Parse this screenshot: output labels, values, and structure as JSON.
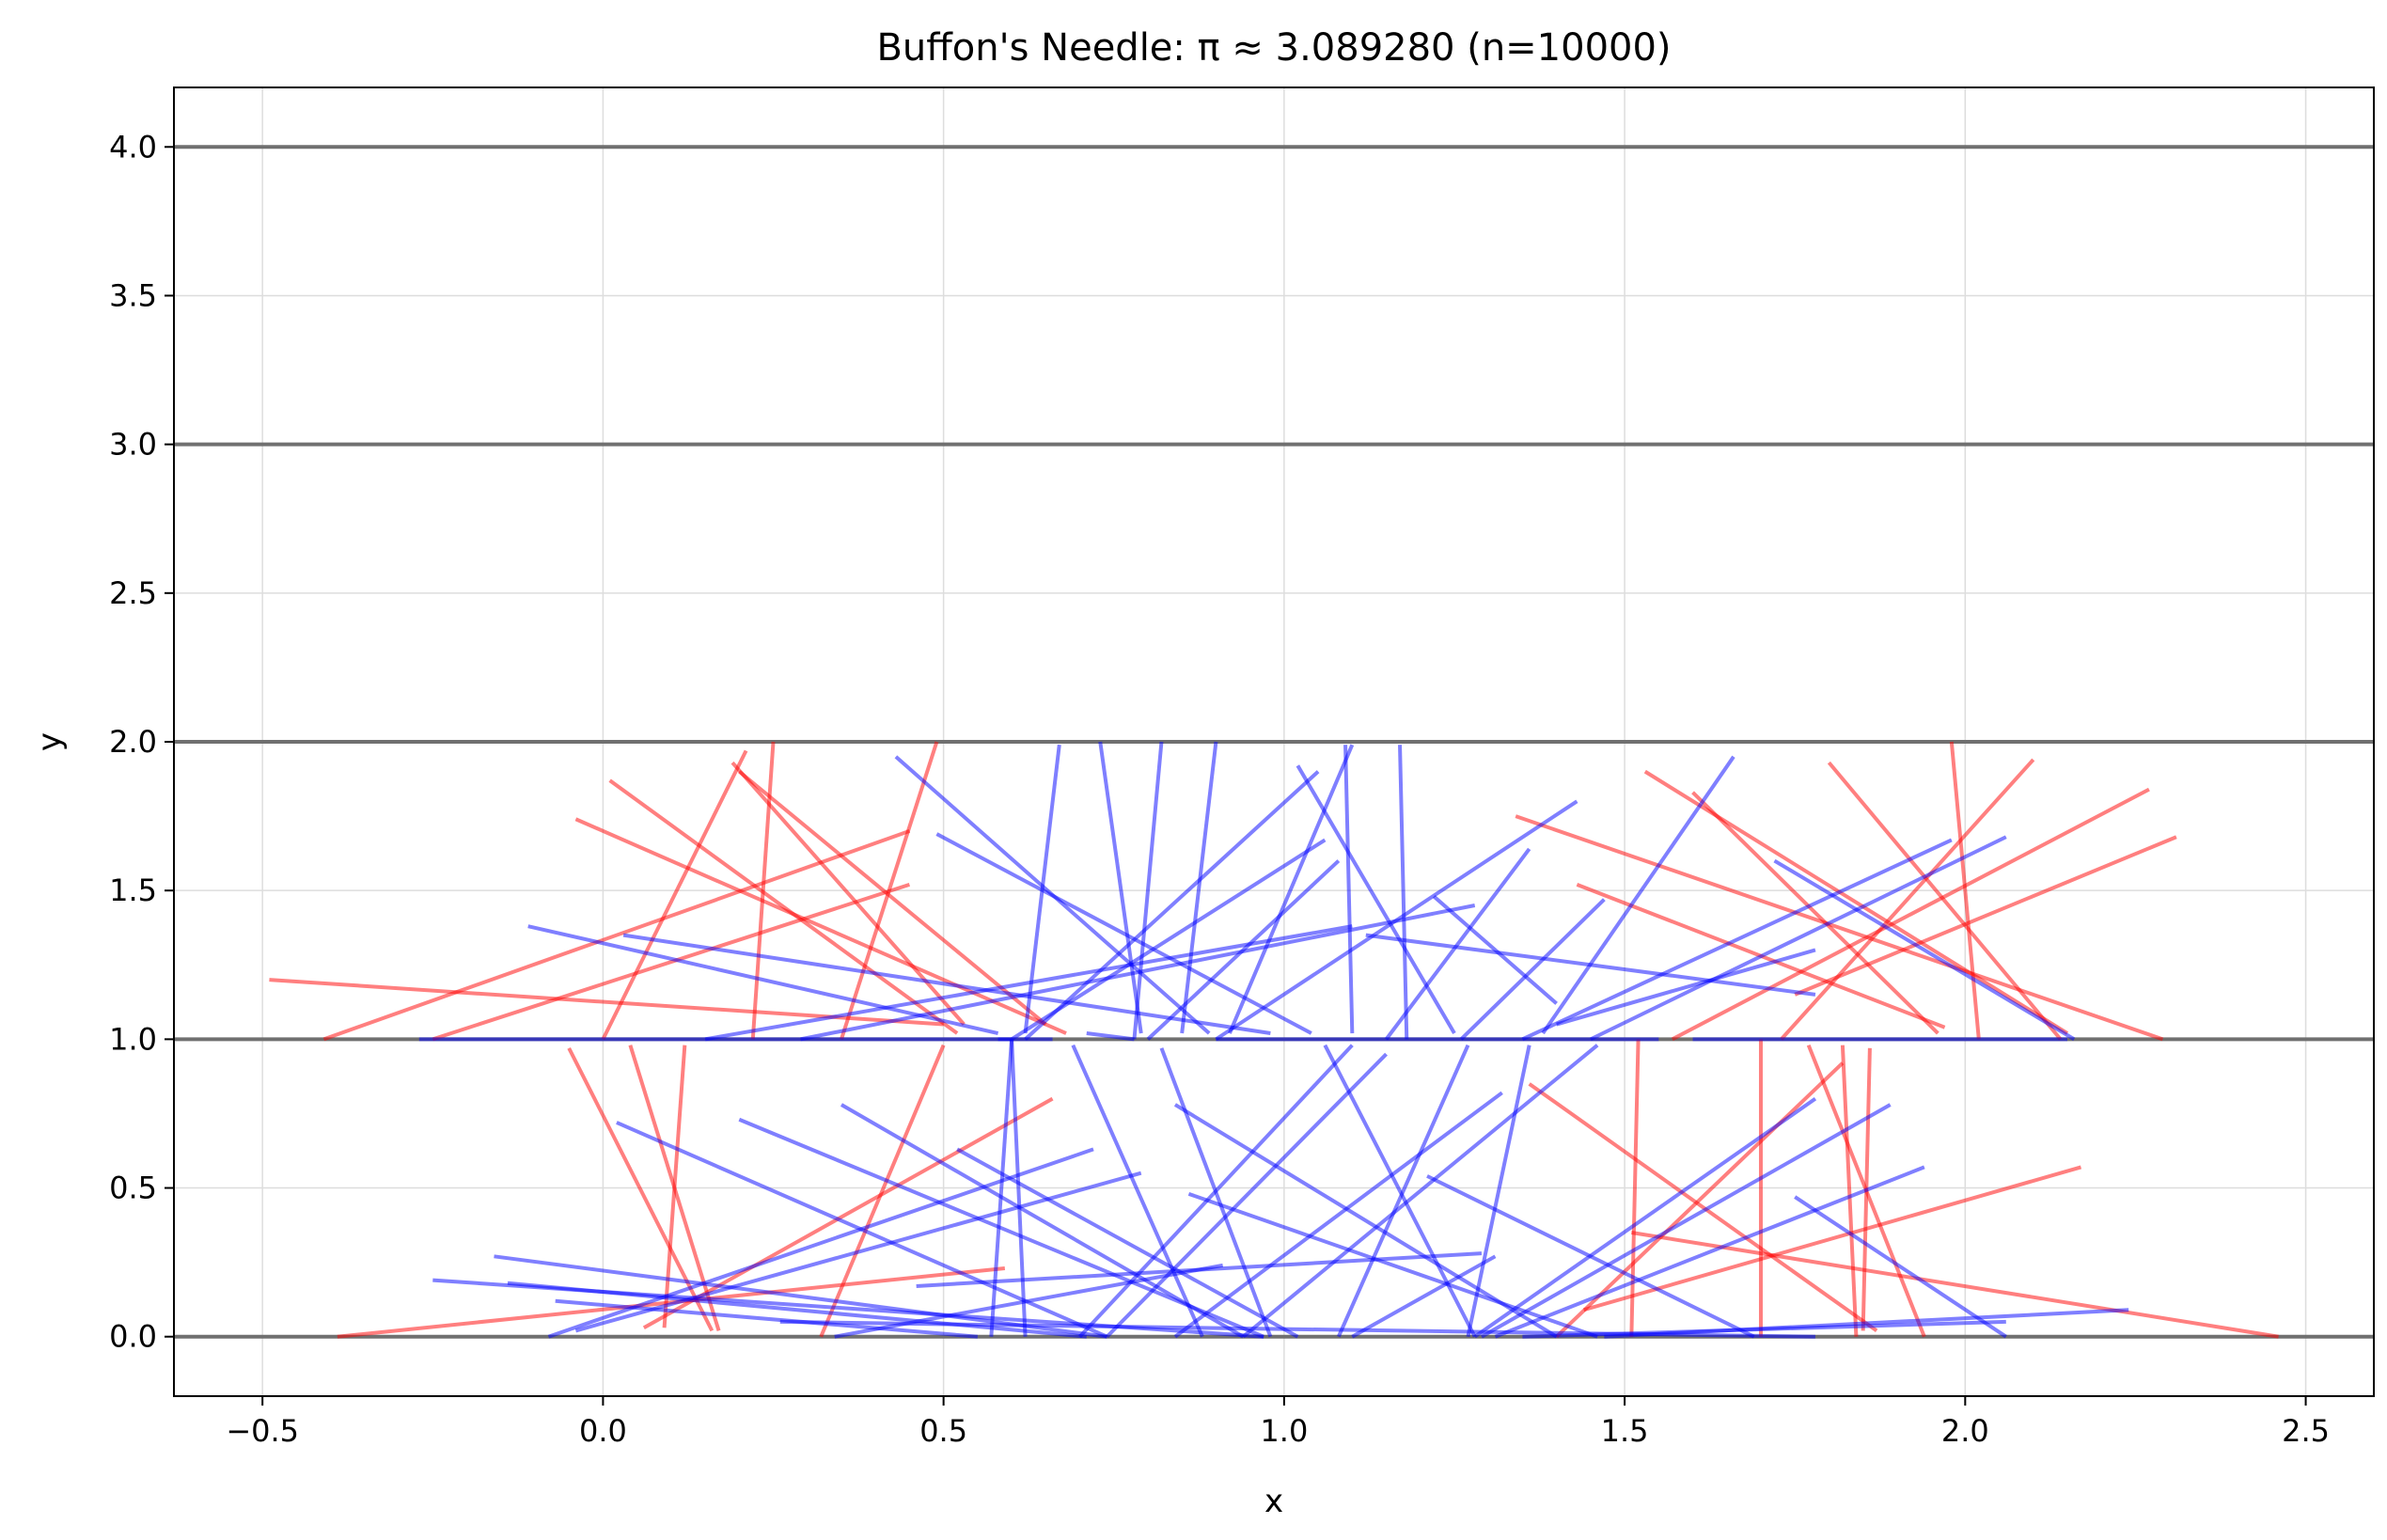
{
  "chart_data": {
    "type": "line",
    "title": "Buffon's Needle: π ≈ 3.089280 (n=10000)",
    "xlabel": "x",
    "ylabel": "y",
    "xlim": [
      -0.63,
      2.6
    ],
    "ylim": [
      -0.2,
      4.2
    ],
    "grid": true,
    "x_ticks": [
      -0.5,
      0.0,
      0.5,
      1.0,
      1.5,
      2.0,
      2.5
    ],
    "x_tick_labels": [
      "−0.5",
      "0.0",
      "0.5",
      "1.0",
      "1.5",
      "2.0",
      "2.5"
    ],
    "y_ticks": [
      0.0,
      0.5,
      1.0,
      1.5,
      2.0,
      2.5,
      3.0,
      3.5,
      4.0
    ],
    "y_tick_labels": [
      "0.0",
      "0.5",
      "1.0",
      "1.5",
      "2.0",
      "2.5",
      "3.0",
      "3.5",
      "4.0"
    ],
    "parallel_lines_y": [
      0,
      1,
      2,
      3,
      4
    ],
    "colors": {
      "parallel_line": "#707070",
      "crossing": "#ff0000",
      "non_crossing": "#0000ff",
      "grid": "#dddddd"
    },
    "series": [
      {
        "crosses": true,
        "segments": [
          [
            [
              -0.49,
              1.2
            ],
            [
              0.5,
              1.05
            ]
          ],
          [
            [
              -0.41,
              1.0
            ],
            [
              0.45,
              1.7
            ]
          ],
          [
            [
              -0.25,
              1.0
            ],
            [
              0.45,
              1.52
            ]
          ],
          [
            [
              0.01,
              1.87
            ],
            [
              0.52,
              1.02
            ]
          ],
          [
            [
              -0.04,
              1.74
            ],
            [
              0.68,
              1.02
            ]
          ],
          [
            [
              0.22,
              1.0
            ],
            [
              0.25,
              2.0
            ]
          ],
          [
            [
              0.19,
              1.93
            ],
            [
              0.53,
              1.05
            ]
          ],
          [
            [
              0.2,
              1.9
            ],
            [
              0.65,
              1.05
            ]
          ],
          [
            [
              0.0,
              1.0
            ],
            [
              0.21,
              1.97
            ]
          ],
          [
            [
              0.35,
              1.0
            ],
            [
              0.49,
              2.0
            ]
          ],
          [
            [
              -0.05,
              0.97
            ],
            [
              0.16,
              0.02
            ]
          ],
          [
            [
              0.04,
              0.98
            ],
            [
              0.17,
              0.02
            ]
          ],
          [
            [
              0.12,
              0.98
            ],
            [
              0.09,
              0.03
            ]
          ],
          [
            [
              -0.39,
              0.0
            ],
            [
              0.59,
              0.23
            ]
          ],
          [
            [
              0.06,
              0.03
            ],
            [
              0.66,
              0.8
            ]
          ],
          [
            [
              0.32,
              0.0
            ],
            [
              0.5,
              0.98
            ]
          ],
          [
            [
              1.34,
              1.75
            ],
            [
              2.29,
              1.0
            ]
          ],
          [
            [
              1.43,
              1.52
            ],
            [
              1.97,
              1.04
            ]
          ],
          [
            [
              1.53,
              1.9
            ],
            [
              2.15,
              1.02
            ]
          ],
          [
            [
              1.6,
              1.83
            ],
            [
              1.96,
              1.02
            ]
          ],
          [
            [
              1.8,
              1.93
            ],
            [
              2.14,
              1.0
            ]
          ],
          [
            [
              1.57,
              1.0
            ],
            [
              2.27,
              1.84
            ]
          ],
          [
            [
              1.73,
              1.0
            ],
            [
              2.1,
              1.94
            ]
          ],
          [
            [
              1.75,
              1.15
            ],
            [
              2.31,
              1.68
            ]
          ],
          [
            [
              1.98,
              2.0
            ],
            [
              2.02,
              1.0
            ]
          ],
          [
            [
              1.77,
              0.98
            ],
            [
              1.94,
              0.0
            ]
          ],
          [
            [
              1.82,
              0.98
            ],
            [
              1.84,
              0.0
            ]
          ],
          [
            [
              1.86,
              0.97
            ],
            [
              1.85,
              0.02
            ]
          ],
          [
            [
              1.7,
              1.0
            ],
            [
              1.7,
              0.0
            ]
          ],
          [
            [
              1.52,
              1.0
            ],
            [
              1.51,
              0.0
            ]
          ],
          [
            [
              1.36,
              0.85
            ],
            [
              1.87,
              0.02
            ]
          ],
          [
            [
              1.4,
              0.0
            ],
            [
              1.82,
              0.92
            ]
          ],
          [
            [
              1.51,
              0.35
            ],
            [
              2.46,
              0.0
            ]
          ],
          [
            [
              1.44,
              0.09
            ],
            [
              2.17,
              0.57
            ]
          ]
        ]
      },
      {
        "crosses": false,
        "segments": [
          [
            [
              -0.27,
              1.0
            ],
            [
              0.6,
              1.0
            ]
          ],
          [
            [
              -0.11,
              1.38
            ],
            [
              0.58,
              1.02
            ]
          ],
          [
            [
              0.03,
              1.35
            ],
            [
              0.98,
              1.02
            ]
          ],
          [
            [
              0.15,
              1.0
            ],
            [
              1.1,
              1.38
            ]
          ],
          [
            [
              0.29,
              1.0
            ],
            [
              1.28,
              1.45
            ]
          ],
          [
            [
              0.43,
              1.95
            ],
            [
              0.89,
              1.02
            ]
          ],
          [
            [
              0.49,
              1.69
            ],
            [
              1.04,
              1.02
            ]
          ],
          [
            [
              0.6,
              1.0
            ],
            [
              1.06,
              1.67
            ]
          ],
          [
            [
              0.62,
              1.0
            ],
            [
              1.05,
              1.9
            ]
          ],
          [
            [
              0.71,
              1.02
            ],
            [
              0.78,
              1.0
            ]
          ],
          [
            [
              0.78,
              1.0
            ],
            [
              0.82,
              2.0
            ]
          ],
          [
            [
              0.85,
              1.02
            ],
            [
              0.9,
              2.0
            ]
          ],
          [
            [
              0.8,
              1.0
            ],
            [
              1.08,
              1.6
            ]
          ],
          [
            [
              0.92,
              1.02
            ],
            [
              1.1,
              1.99
            ]
          ],
          [
            [
              0.9,
              1.0
            ],
            [
              1.43,
              1.8
            ]
          ],
          [
            [
              1.02,
              1.92
            ],
            [
              1.25,
              1.02
            ]
          ],
          [
            [
              1.1,
              1.02
            ],
            [
              1.09,
              1.99
            ]
          ],
          [
            [
              1.18,
              1.0
            ],
            [
              1.17,
              1.99
            ]
          ],
          [
            [
              1.22,
              1.48
            ],
            [
              1.4,
              1.12
            ]
          ],
          [
            [
              1.26,
              1.0
            ],
            [
              1.47,
              1.47
            ]
          ],
          [
            [
              1.4,
              1.05
            ],
            [
              1.78,
              1.3
            ]
          ],
          [
            [
              1.38,
              1.02
            ],
            [
              1.66,
              1.95
            ]
          ],
          [
            [
              1.45,
              1.0
            ],
            [
              2.06,
              1.68
            ]
          ],
          [
            [
              1.35,
              1.0
            ],
            [
              1.98,
              1.67
            ]
          ],
          [
            [
              0.79,
              1.02
            ],
            [
              0.73,
              2.0
            ]
          ],
          [
            [
              0.62,
              1.02
            ],
            [
              0.67,
              1.99
            ]
          ],
          [
            [
              1.15,
              1.0
            ],
            [
              1.36,
              1.64
            ]
          ],
          [
            [
              1.6,
              1.0
            ],
            [
              2.15,
              1.0
            ]
          ],
          [
            [
              1.72,
              1.6
            ],
            [
              2.16,
              1.0
            ]
          ],
          [
            [
              0.9,
              1.0
            ],
            [
              1.55,
              1.0
            ]
          ],
          [
            [
              0.58,
              1.0
            ],
            [
              0.66,
              1.0
            ]
          ],
          [
            [
              1.12,
              1.35
            ],
            [
              1.78,
              1.15
            ]
          ],
          [
            [
              -0.08,
              0.0
            ],
            [
              0.72,
              0.63
            ]
          ],
          [
            [
              0.02,
              0.72
            ],
            [
              0.74,
              0.0
            ]
          ],
          [
            [
              -0.04,
              0.02
            ],
            [
              0.79,
              0.55
            ]
          ],
          [
            [
              -0.25,
              0.19
            ],
            [
              0.97,
              0.0
            ]
          ],
          [
            [
              -0.16,
              0.27
            ],
            [
              0.74,
              0.0
            ]
          ],
          [
            [
              -0.14,
              0.18
            ],
            [
              0.71,
              0.0
            ]
          ],
          [
            [
              -0.07,
              0.12
            ],
            [
              0.55,
              0.0
            ]
          ],
          [
            [
              0.2,
              0.73
            ],
            [
              0.97,
              0.0
            ]
          ],
          [
            [
              0.34,
              0.0
            ],
            [
              0.91,
              0.24
            ]
          ],
          [
            [
              0.35,
              0.78
            ],
            [
              0.94,
              0.0
            ]
          ],
          [
            [
              0.52,
              0.63
            ],
            [
              1.02,
              0.0
            ]
          ],
          [
            [
              0.57,
              0.0
            ],
            [
              0.6,
              1.0
            ]
          ],
          [
            [
              0.62,
              0.0
            ],
            [
              0.6,
              1.0
            ]
          ],
          [
            [
              0.69,
              0.98
            ],
            [
              0.88,
              0.0
            ]
          ],
          [
            [
              0.7,
              0.0
            ],
            [
              1.1,
              0.98
            ]
          ],
          [
            [
              0.82,
              0.97
            ],
            [
              0.98,
              0.0
            ]
          ],
          [
            [
              0.84,
              0.0
            ],
            [
              1.32,
              0.82
            ]
          ],
          [
            [
              0.74,
              0.0
            ],
            [
              1.15,
              0.95
            ]
          ],
          [
            [
              0.86,
              0.48
            ],
            [
              1.46,
              0.0
            ]
          ],
          [
            [
              0.84,
              0.78
            ],
            [
              1.4,
              0.0
            ]
          ],
          [
            [
              0.94,
              0.0
            ],
            [
              1.46,
              0.98
            ]
          ],
          [
            [
              1.06,
              0.98
            ],
            [
              1.28,
              0.0
            ]
          ],
          [
            [
              1.1,
              0.0
            ],
            [
              1.31,
              0.27
            ]
          ],
          [
            [
              1.08,
              0.0
            ],
            [
              1.27,
              0.98
            ]
          ],
          [
            [
              1.21,
              0.54
            ],
            [
              1.69,
              0.0
            ]
          ],
          [
            [
              1.27,
              0.0
            ],
            [
              1.36,
              0.98
            ]
          ],
          [
            [
              1.28,
              0.0
            ],
            [
              1.78,
              0.8
            ]
          ],
          [
            [
              1.29,
              0.0
            ],
            [
              1.89,
              0.78
            ]
          ],
          [
            [
              1.31,
              0.0
            ],
            [
              1.94,
              0.57
            ]
          ],
          [
            [
              1.35,
              0.0
            ],
            [
              2.06,
              0.05
            ]
          ],
          [
            [
              1.47,
              0.0
            ],
            [
              2.24,
              0.09
            ]
          ],
          [
            [
              1.75,
              0.47
            ],
            [
              2.06,
              0.0
            ]
          ],
          [
            [
              0.46,
              0.17
            ],
            [
              1.29,
              0.28
            ]
          ],
          [
            [
              0.26,
              0.05
            ],
            [
              1.78,
              0.0
            ]
          ]
        ]
      }
    ]
  }
}
